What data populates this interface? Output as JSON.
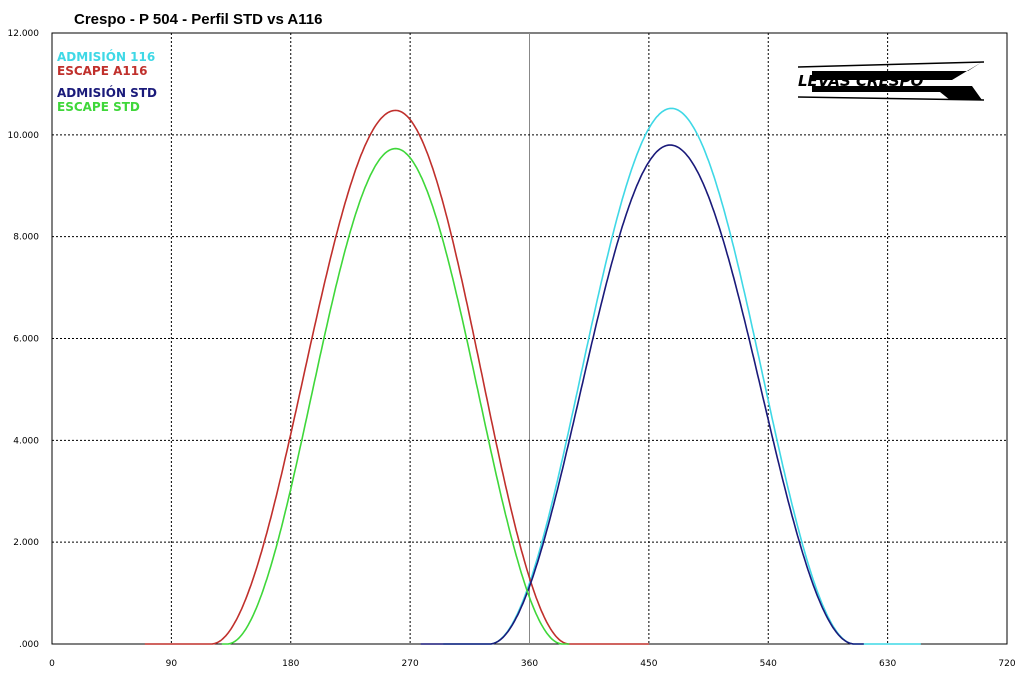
{
  "chart_data": {
    "type": "line",
    "title": "Crespo - P 504 - Perfil STD vs A116",
    "xlabel": "",
    "ylabel": "",
    "xlim": [
      0,
      720
    ],
    "ylim": [
      0,
      12
    ],
    "x_ticks": [
      "0",
      "90",
      "180",
      "270",
      "360",
      "450",
      "540",
      "630",
      "720"
    ],
    "y_ticks": [
      ".000",
      "2.000",
      "4.000",
      "6.000",
      "8.000",
      "10.000",
      "12.000"
    ],
    "reference_line_x": 360,
    "grid": true,
    "legend_position": "top-left",
    "series": [
      {
        "name": "ADMISIÓN 116",
        "color": "#3fd8e6",
        "start": 295,
        "end": 655,
        "peak_x": 467,
        "peak_y": 10.52,
        "open": 330,
        "close": 605
      },
      {
        "name": "ESCAPE A116",
        "color": "#c0302c",
        "start": 70,
        "end": 450,
        "peak_x": 259,
        "peak_y": 10.48,
        "open": 120,
        "close": 390
      },
      {
        "name": "ADMISIÓN STD",
        "color": "#1a1a7a",
        "start": 278,
        "end": 612,
        "peak_x": 466,
        "peak_y": 9.8,
        "open": 330,
        "close": 605
      },
      {
        "name": "ESCAPE STD",
        "color": "#3fd73a",
        "start": 128,
        "end": 390,
        "peak_x": 259,
        "peak_y": 9.73,
        "open": 132,
        "close": 385
      }
    ]
  },
  "logo": {
    "text": "LEVAS CRESPO"
  }
}
